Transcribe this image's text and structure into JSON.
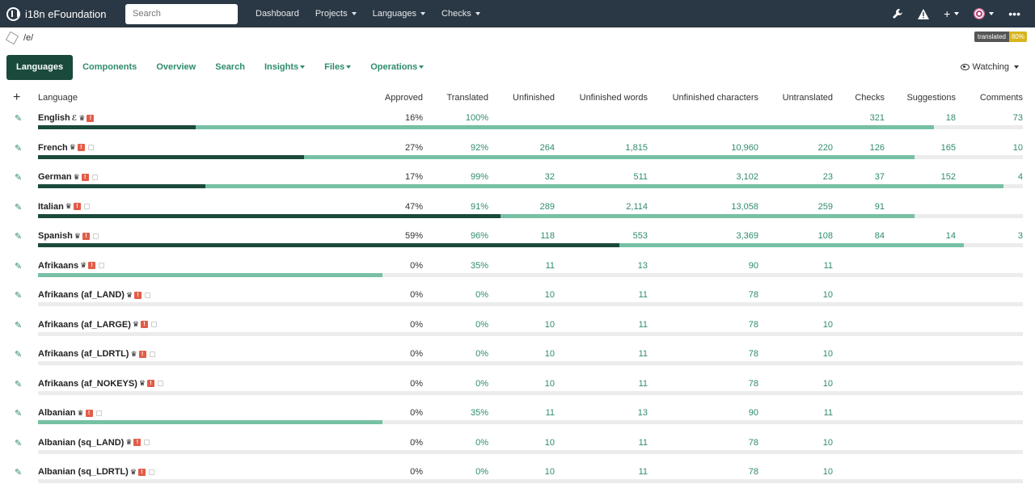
{
  "navbar": {
    "brand": "i18n eFoundation",
    "search_placeholder": "Search",
    "links": [
      "Dashboard",
      "Projects",
      "Languages",
      "Checks"
    ],
    "plus_label": "+",
    "more_label": "•••"
  },
  "breadcrumb": "/e/",
  "badge": {
    "label": "translated",
    "value": "80%"
  },
  "tabs": [
    "Languages",
    "Components",
    "Overview",
    "Search",
    "Insights",
    "Files",
    "Operations"
  ],
  "watching": "Watching",
  "table": {
    "add_label": "+",
    "headers": [
      "Language",
      "Approved",
      "Translated",
      "Unfinished",
      "Unfinished words",
      "Unfinished characters",
      "Untranslated",
      "Checks",
      "Suggestions",
      "Comments"
    ],
    "rows": [
      {
        "language": "English",
        "source": true,
        "approved": "16%",
        "translated": "100%",
        "unfinished": "",
        "words": "",
        "chars": "",
        "untranslated": "",
        "checks": "321",
        "suggestions": "18",
        "comments": "73",
        "approved_pct": 16,
        "translated_pct": 91
      },
      {
        "language": "French",
        "approved": "27%",
        "translated": "92%",
        "unfinished": "264",
        "words": "1,815",
        "chars": "10,960",
        "untranslated": "220",
        "checks": "126",
        "suggestions": "165",
        "comments": "10",
        "approved_pct": 27,
        "translated_pct": 89
      },
      {
        "language": "German",
        "approved": "17%",
        "translated": "99%",
        "unfinished": "32",
        "words": "511",
        "chars": "3,102",
        "untranslated": "23",
        "checks": "37",
        "suggestions": "152",
        "comments": "4",
        "approved_pct": 17,
        "translated_pct": 98
      },
      {
        "language": "Italian",
        "approved": "47%",
        "translated": "91%",
        "unfinished": "289",
        "words": "2,114",
        "chars": "13,058",
        "untranslated": "259",
        "checks": "91",
        "suggestions": "",
        "comments": "",
        "approved_pct": 47,
        "translated_pct": 89
      },
      {
        "language": "Spanish",
        "approved": "59%",
        "translated": "96%",
        "unfinished": "118",
        "words": "553",
        "chars": "3,369",
        "untranslated": "108",
        "checks": "84",
        "suggestions": "14",
        "comments": "3",
        "approved_pct": 59,
        "translated_pct": 94
      },
      {
        "language": "Afrikaans",
        "approved": "0%",
        "translated": "35%",
        "unfinished": "11",
        "words": "13",
        "chars": "90",
        "untranslated": "11",
        "checks": "",
        "suggestions": "",
        "comments": "",
        "approved_pct": 0,
        "translated_pct": 35
      },
      {
        "language": "Afrikaans (af_LAND)",
        "approved": "0%",
        "translated": "0%",
        "unfinished": "10",
        "words": "11",
        "chars": "78",
        "untranslated": "10",
        "checks": "",
        "suggestions": "",
        "comments": "",
        "approved_pct": 0,
        "translated_pct": 0
      },
      {
        "language": "Afrikaans (af_LARGE)",
        "approved": "0%",
        "translated": "0%",
        "unfinished": "10",
        "words": "11",
        "chars": "78",
        "untranslated": "10",
        "checks": "",
        "suggestions": "",
        "comments": "",
        "approved_pct": 0,
        "translated_pct": 0
      },
      {
        "language": "Afrikaans (af_LDRTL)",
        "approved": "0%",
        "translated": "0%",
        "unfinished": "10",
        "words": "11",
        "chars": "78",
        "untranslated": "10",
        "checks": "",
        "suggestions": "",
        "comments": "",
        "approved_pct": 0,
        "translated_pct": 0
      },
      {
        "language": "Afrikaans (af_NOKEYS)",
        "approved": "0%",
        "translated": "0%",
        "unfinished": "10",
        "words": "11",
        "chars": "78",
        "untranslated": "10",
        "checks": "",
        "suggestions": "",
        "comments": "",
        "approved_pct": 0,
        "translated_pct": 0
      },
      {
        "language": "Albanian",
        "approved": "0%",
        "translated": "35%",
        "unfinished": "11",
        "words": "13",
        "chars": "90",
        "untranslated": "11",
        "checks": "",
        "suggestions": "",
        "comments": "",
        "approved_pct": 0,
        "translated_pct": 35
      },
      {
        "language": "Albanian (sq_LAND)",
        "approved": "0%",
        "translated": "0%",
        "unfinished": "10",
        "words": "11",
        "chars": "78",
        "untranslated": "10",
        "checks": "",
        "suggestions": "",
        "comments": "",
        "approved_pct": 0,
        "translated_pct": 0
      },
      {
        "language": "Albanian (sq_LDRTL)",
        "approved": "0%",
        "translated": "0%",
        "unfinished": "10",
        "words": "11",
        "chars": "78",
        "untranslated": "10",
        "checks": "",
        "suggestions": "",
        "comments": "",
        "approved_pct": 0,
        "translated_pct": 0
      }
    ]
  }
}
